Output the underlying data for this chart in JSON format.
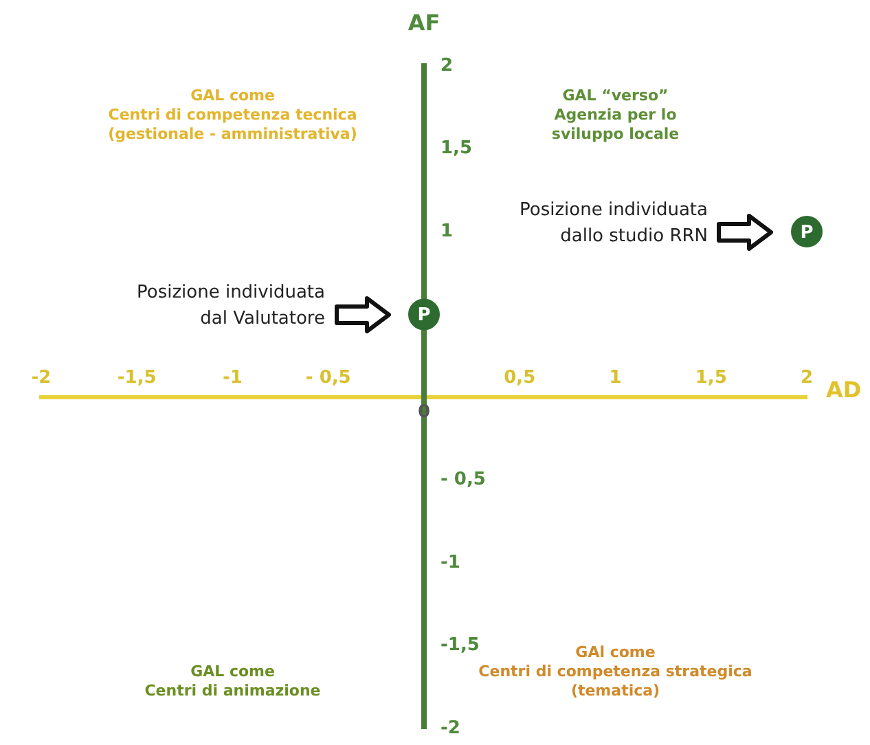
{
  "chart_data": {
    "type": "scatter",
    "xlabel": "AD",
    "ylabel": "AF",
    "series": [
      {
        "color": "#2e6b30",
        "x": [
          0,
          2
        ],
        "values": [
          0.5,
          1
        ],
        "value_labels": [
          "P",
          "P"
        ]
      }
    ],
    "marker": "circle",
    "grid": false,
    "xlim": [
      -2,
      2
    ],
    "ylim": [
      -2,
      2
    ],
    "xticks": [
      -2,
      {
        "value": -1.5,
        "label": "-1,5"
      },
      -1,
      {
        "value": -0.5,
        "label": "- 0,5"
      },
      {
        "value": 0.5,
        "label": "0,5"
      },
      1,
      {
        "value": 1.5,
        "label": "1,5"
      },
      2
    ],
    "yticks": [
      -2,
      {
        "value": -1.5,
        "label": "-1,5"
      },
      -1,
      {
        "value": -0.5,
        "label": "- 0,5"
      },
      1,
      {
        "value": 1.5,
        "label": "1,5"
      },
      2
    ],
    "annotations": [
      "Posizione individuata\ndal Valutatore",
      "Posizione individuata\ndallo studio RRN",
      "GAL come\nCentri di competenza tecnica\n(gestionale - amministrativa)",
      "GAL “verso”\nAgenzia per lo\nsviluppo locale",
      "GAL come\nCentri di animazione",
      "GAl come\nCentri di competenza strategica\n(tematica)",
      "0"
    ]
  }
}
